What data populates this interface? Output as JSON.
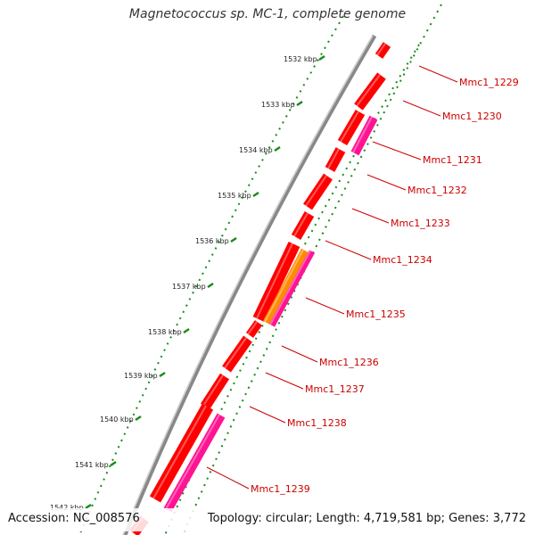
{
  "title": "Magnetococcus sp. MC-1, complete genome",
  "accession": "Accession: NC_008576",
  "topology": "Topology: circular; Length: 4,719,581 bp; Genes: 3,772",
  "colors": {
    "backbone": "#888888",
    "tick_dots": "#1a8a1a",
    "gene_forward": "#ff0000",
    "gene_reverse": "#ff0000",
    "rna_orange": "#ff8c00",
    "pink_track": "#ff1493",
    "label": "#cc0000"
  },
  "kbp_ticks": [
    "1532 kbp",
    "1533 kbp",
    "1534 kbp",
    "1535 kbp",
    "1536 kbp",
    "1537 kbp",
    "1538 kbp",
    "1539 kbp",
    "1540 kbp",
    "1541 kbp",
    "1542 kbp"
  ],
  "gene_labels": [
    "Mmc1_1229",
    "Mmc1_1230",
    "Mmc1_1231",
    "Mmc1_1232",
    "Mmc1_1233",
    "Mmc1_1234",
    "Mmc1_1235",
    "Mmc1_1236",
    "Mmc1_1237",
    "Mmc1_1238",
    "Mmc1_1239"
  ]
}
